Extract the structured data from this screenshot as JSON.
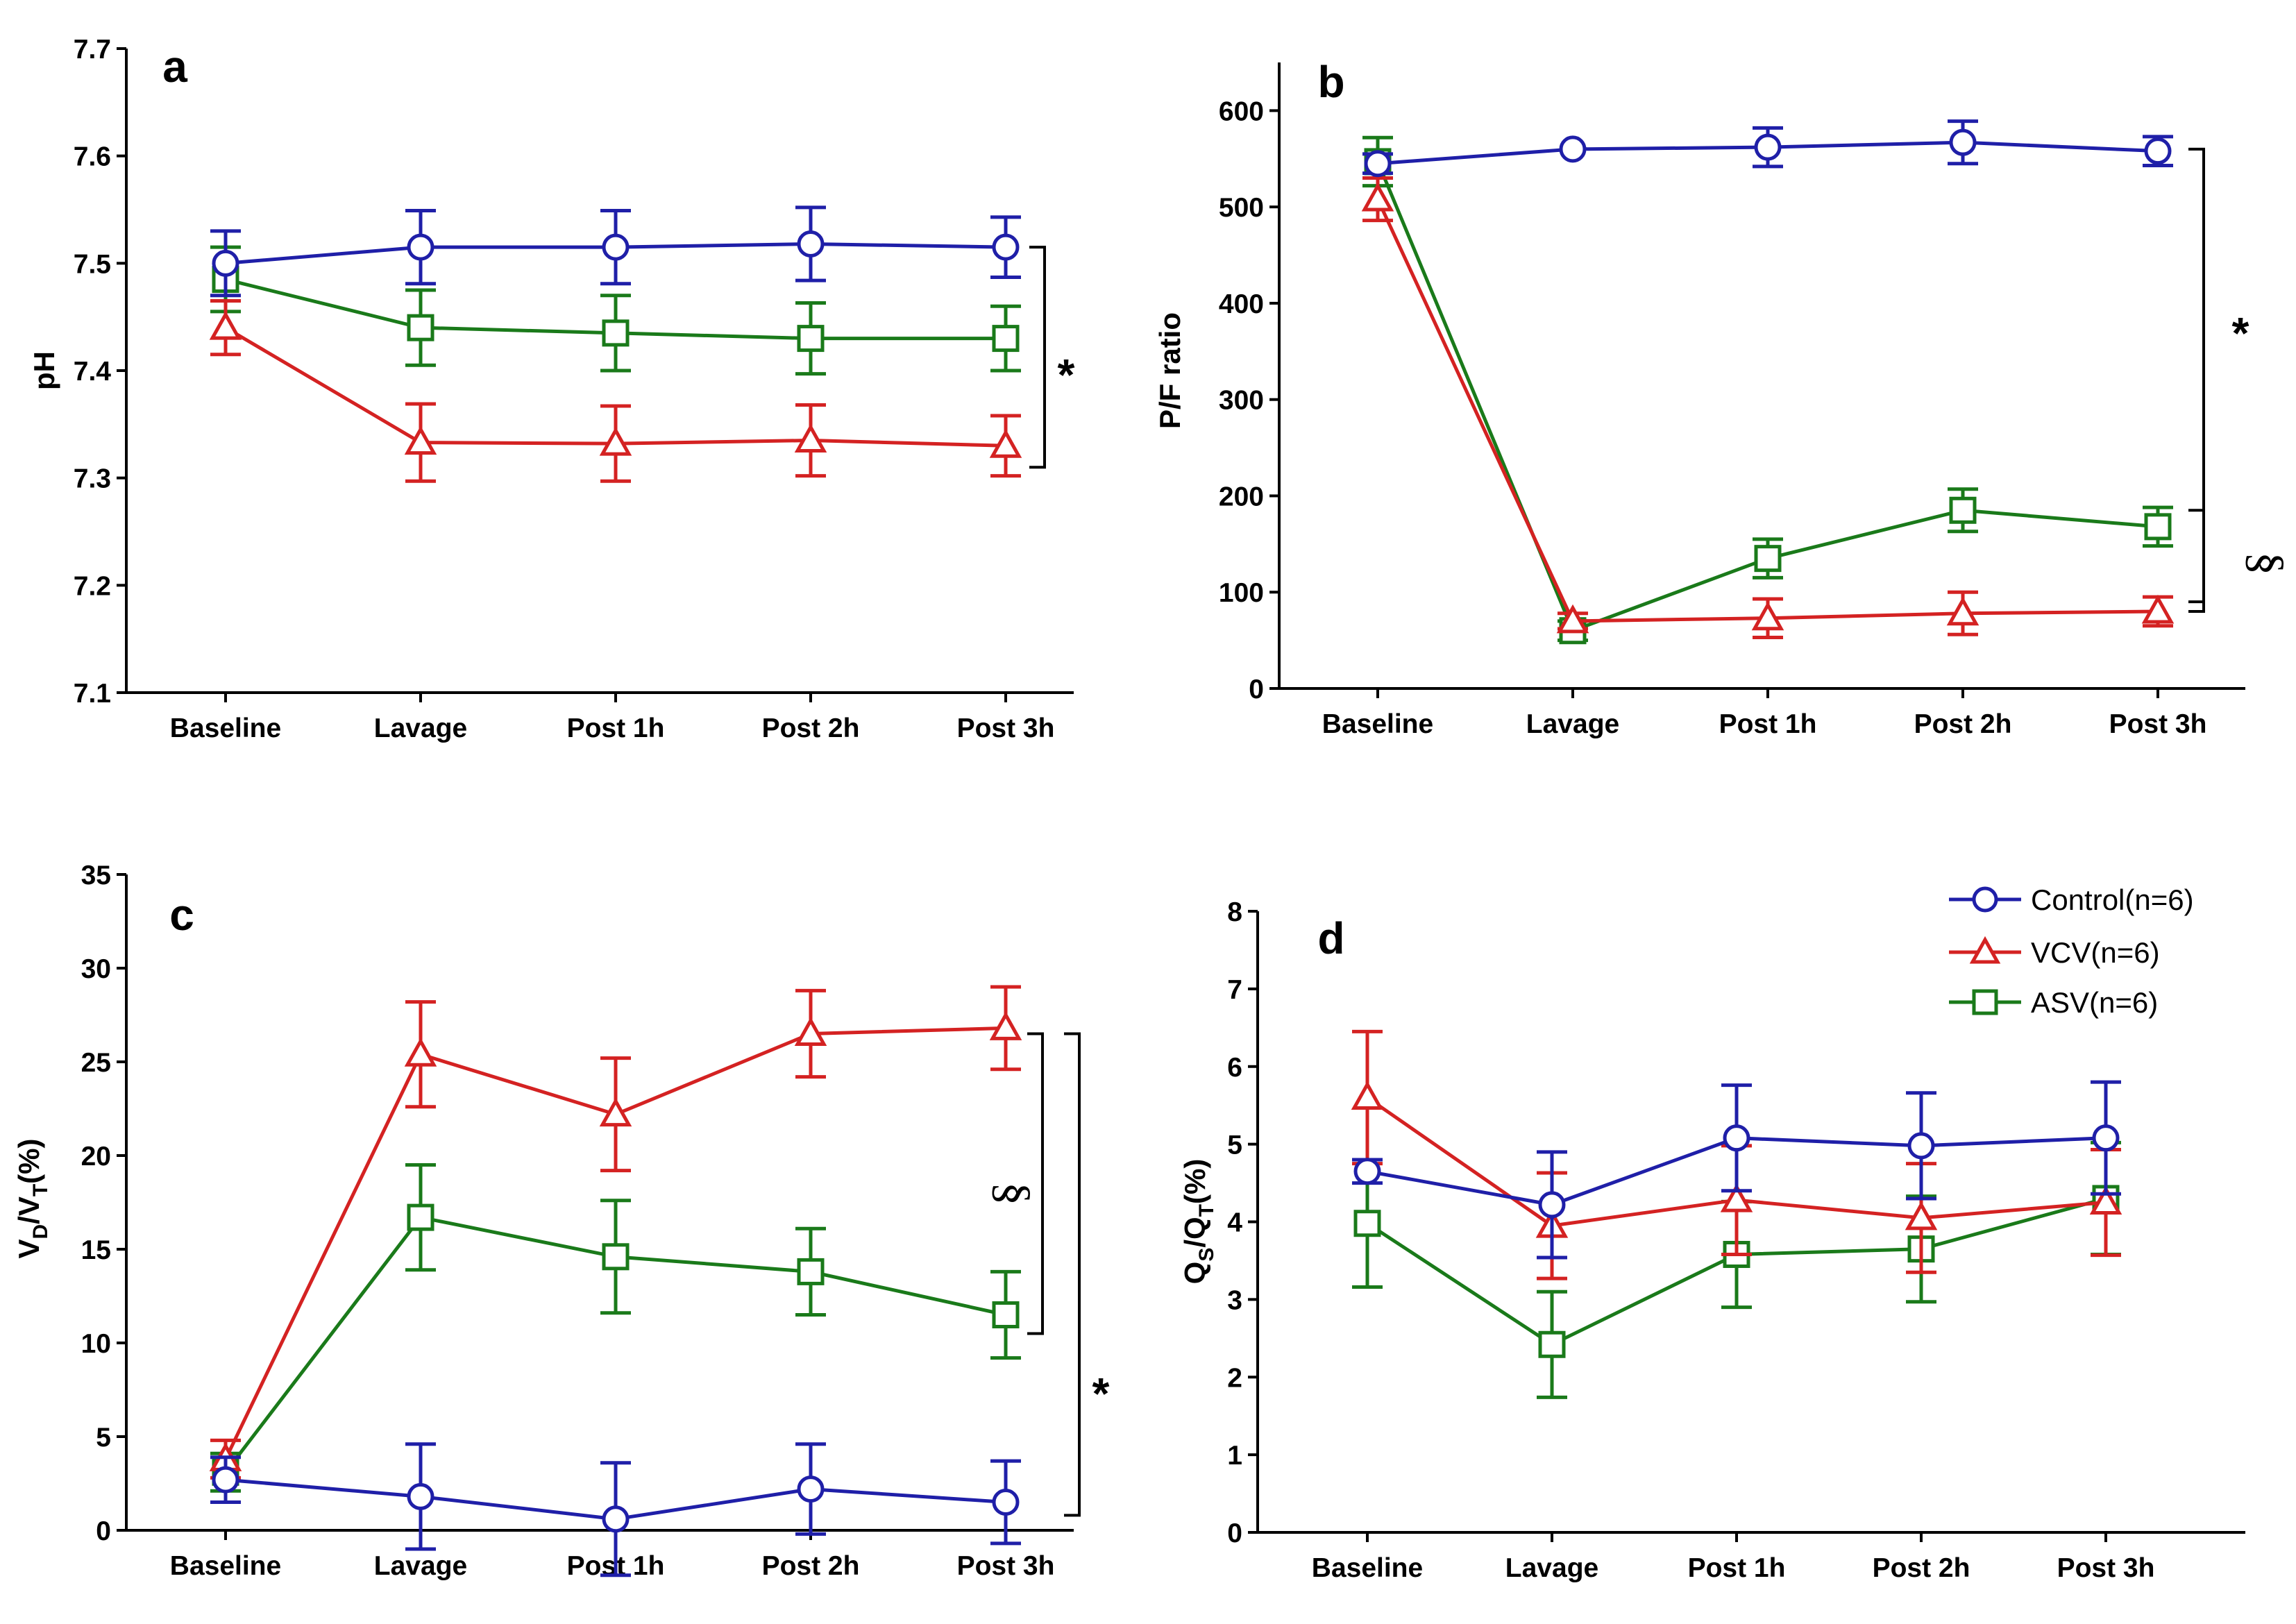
{
  "legend": {
    "entries": [
      {
        "label": "Control(n=6)",
        "series": "control"
      },
      {
        "label": "VCV(n=6)",
        "series": "vcv"
      },
      {
        "label": "ASV(n=6)",
        "series": "asv"
      }
    ]
  },
  "colors": {
    "control": "#1f1fa8",
    "vcv": "#d42222",
    "asv": "#1a7a1a",
    "axis": "#000000"
  },
  "markers": {
    "control": "circle",
    "vcv": "triangle",
    "asv": "square"
  },
  "chart_data": [
    {
      "panel": "a",
      "type": "line",
      "ylabel": "pH",
      "xlabel": "",
      "ylim": [
        7.1,
        7.7
      ],
      "yticks": [
        "7.1",
        "7.2",
        "7.3",
        "7.4",
        "7.5",
        "7.6",
        "7.7"
      ],
      "categories": [
        "Baseline",
        "Lavage",
        "Post 1h",
        "Post 2h",
        "Post 3h"
      ],
      "series": [
        {
          "name": "Control(n=6)",
          "key": "control",
          "values": [
            7.5,
            7.515,
            7.515,
            7.518,
            7.515
          ],
          "err": [
            0.03,
            0.034,
            0.034,
            0.034,
            0.028
          ]
        },
        {
          "name": "VCV(n=6)",
          "key": "vcv",
          "values": [
            7.44,
            7.333,
            7.332,
            7.335,
            7.33
          ],
          "err": [
            0.025,
            0.036,
            0.035,
            0.033,
            0.028
          ]
        },
        {
          "name": "ASV(n=6)",
          "key": "asv",
          "values": [
            7.485,
            7.44,
            7.435,
            7.43,
            7.43
          ],
          "err": [
            0.03,
            0.035,
            0.035,
            0.033,
            0.03
          ]
        }
      ],
      "annotations": [
        {
          "symbol": "*",
          "from": 7.515,
          "to": 7.31
        }
      ]
    },
    {
      "panel": "b",
      "type": "line",
      "ylabel": "P/F ratio",
      "xlabel": "",
      "ylim": [
        0,
        650
      ],
      "yticks": [
        "0",
        "100",
        "200",
        "300",
        "400",
        "500",
        "600"
      ],
      "categories": [
        "Baseline",
        "Lavage",
        "Post 1h",
        "Post 2h",
        "Post 3h"
      ],
      "series": [
        {
          "name": "Control(n=6)",
          "key": "control",
          "values": [
            545,
            560,
            562,
            567,
            558
          ],
          "err": [
            10,
            0,
            20,
            22,
            15
          ]
        },
        {
          "name": "VCV(n=6)",
          "key": "vcv",
          "values": [
            508,
            70,
            73,
            78,
            80
          ],
          "err": [
            22,
            8,
            20,
            22,
            15
          ]
        },
        {
          "name": "ASV(n=6)",
          "key": "asv",
          "values": [
            547,
            60,
            135,
            185,
            168
          ],
          "err": [
            25,
            10,
            20,
            22,
            20
          ]
        }
      ],
      "annotations": [
        {
          "symbol": "*",
          "from": 560,
          "to": 90
        },
        {
          "symbol": "§",
          "from": 185,
          "to": 80
        }
      ]
    },
    {
      "panel": "c",
      "type": "line",
      "ylabel_main": "V",
      "ylabel_sub1": "D",
      "ylabel_mid": "/V",
      "ylabel_sub2": "T",
      "ylabel_tail": "(%)",
      "xlabel": "",
      "ylim": [
        0,
        35
      ],
      "yticks": [
        "0",
        "5",
        "10",
        "15",
        "20",
        "25",
        "30",
        "35"
      ],
      "categories": [
        "Baseline",
        "Lavage",
        "Post 1h",
        "Post 2h",
        "Post 3h"
      ],
      "series": [
        {
          "name": "Control(n=6)",
          "key": "control",
          "values": [
            2.7,
            1.8,
            0.6,
            2.2,
            1.5
          ],
          "err": [
            1.2,
            2.8,
            3.0,
            2.4,
            2.2
          ]
        },
        {
          "name": "VCV(n=6)",
          "key": "vcv",
          "values": [
            3.8,
            25.4,
            22.2,
            26.5,
            26.8
          ],
          "err": [
            1.0,
            2.8,
            3.0,
            2.3,
            2.2
          ]
        },
        {
          "name": "ASV(n=6)",
          "key": "asv",
          "values": [
            3.1,
            16.7,
            14.6,
            13.8,
            11.5
          ],
          "err": [
            1.0,
            2.8,
            3.0,
            2.3,
            2.3
          ]
        }
      ],
      "annotations": [
        {
          "symbol": "§",
          "from": 26.5,
          "to": 10.5
        },
        {
          "symbol": "*",
          "from": 26.5,
          "to": 0.8
        }
      ]
    },
    {
      "panel": "d",
      "type": "line",
      "ylabel_main": "Q",
      "ylabel_sub1": "S",
      "ylabel_mid": "/Q",
      "ylabel_sub2": "T",
      "ylabel_tail": "(%)",
      "xlabel": "",
      "ylim": [
        0,
        8
      ],
      "yticks": [
        "0",
        "1",
        "2",
        "3",
        "4",
        "5",
        "6",
        "7",
        "8"
      ],
      "categories": [
        "Baseline",
        "Lavage",
        "Post 1h",
        "Post 2h",
        "Post 3h"
      ],
      "series": [
        {
          "name": "Control(n=6)",
          "key": "control",
          "values": [
            4.65,
            4.22,
            5.08,
            4.98,
            5.08
          ],
          "err": [
            0.15,
            0.68,
            0.68,
            0.68,
            0.72
          ]
        },
        {
          "name": "VCV(n=6)",
          "key": "vcv",
          "values": [
            5.6,
            3.95,
            4.28,
            4.05,
            4.25
          ],
          "err": [
            0.85,
            0.68,
            0.7,
            0.7,
            0.68
          ]
        },
        {
          "name": "ASV(n=6)",
          "key": "asv",
          "values": [
            3.98,
            2.42,
            3.58,
            3.65,
            4.3
          ],
          "err": [
            0.82,
            0.68,
            0.68,
            0.68,
            0.72
          ]
        }
      ],
      "annotations": []
    }
  ]
}
